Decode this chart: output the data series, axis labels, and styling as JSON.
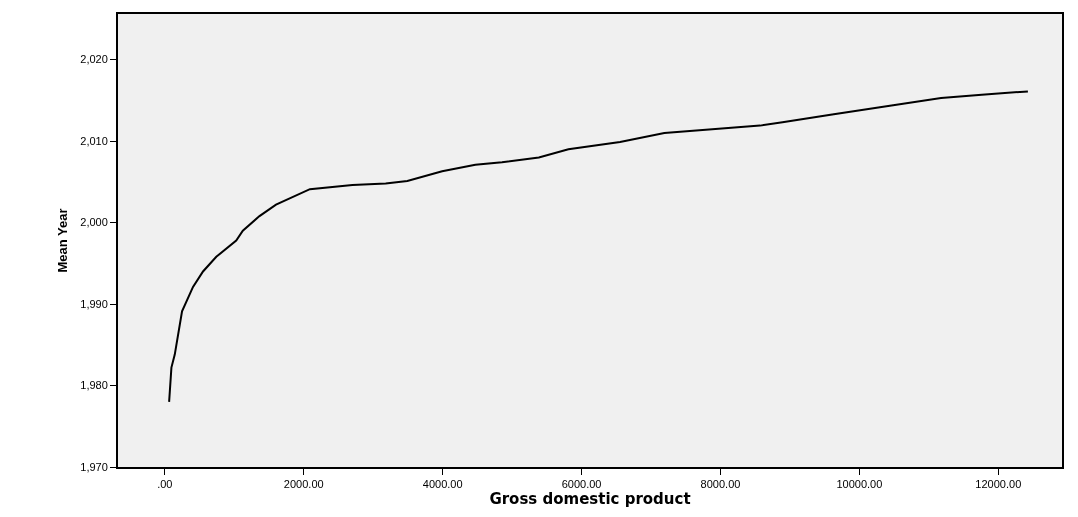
{
  "chart_data": {
    "type": "line",
    "xlabel": "Gross domestic product",
    "ylabel": "Mean Year",
    "xlim": [
      -674,
      12917
    ],
    "ylim": [
      1970,
      2025.6
    ],
    "xticks": [
      {
        "value": 0,
        "label": ".00"
      },
      {
        "value": 2000,
        "label": "2000.00"
      },
      {
        "value": 4000,
        "label": "4000.00"
      },
      {
        "value": 6000,
        "label": "6000.00"
      },
      {
        "value": 8000,
        "label": "8000.00"
      },
      {
        "value": 10000,
        "label": "10000.00"
      },
      {
        "value": 12000,
        "label": "12000.00"
      }
    ],
    "yticks": [
      {
        "value": 1970,
        "label": "1,970"
      },
      {
        "value": 1980,
        "label": "1,980"
      },
      {
        "value": 1990,
        "label": "1,990"
      },
      {
        "value": 2000,
        "label": "2,000"
      },
      {
        "value": 2010,
        "label": "2,010"
      },
      {
        "value": 2020,
        "label": "2,020"
      }
    ],
    "grid": false,
    "marker": "none",
    "line_style": "solid",
    "series": [
      {
        "color": "#000000",
        "x": [
          62,
          95,
          143,
          248,
          406,
          550,
          741,
          1028,
          1123,
          1363,
          1601,
          2089,
          2702,
          3180,
          3491,
          3993,
          4471,
          4855,
          5385,
          5811,
          6554,
          7192,
          8570,
          8893,
          9631,
          10486,
          11176,
          11762,
          12426
        ],
        "values": [
          1978.0,
          1982.2,
          1983.8,
          1989.1,
          1992.1,
          1994.0,
          1995.8,
          1997.8,
          1999.0,
          2000.8,
          2002.2,
          2004.1,
          2004.6,
          2004.8,
          2005.1,
          2006.3,
          2007.1,
          2007.4,
          2008.0,
          2009.0,
          2009.9,
          2011.0,
          2011.9,
          2012.3,
          2013.3,
          2014.4,
          2015.3,
          2015.7,
          2016.1
        ]
      }
    ]
  }
}
